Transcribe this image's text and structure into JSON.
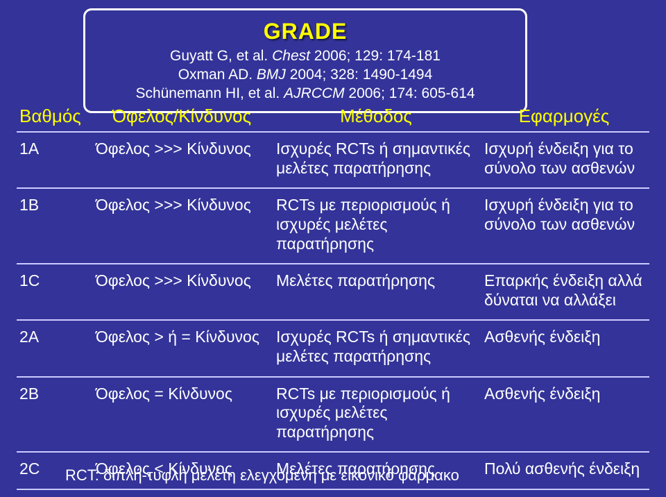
{
  "colors": {
    "background": "#333399",
    "title_color": "#ffff00",
    "header_text": "#ffff00",
    "body_text": "#ffffff",
    "border_color": "#ffffff",
    "rule_color": "#ccccff"
  },
  "header": {
    "title": "GRADE",
    "cite1_prefix": "Guyatt G, et al. ",
    "cite1_italic": "Chest",
    "cite1_suffix": " 2006; 129: 174-181",
    "cite2_prefix": "Oxman AD. ",
    "cite2_italic": "BMJ",
    "cite2_suffix": " 2004; 328: 1490-1494",
    "cite3_prefix": "Schünemann HI, et al. ",
    "cite3_italic": "AJRCCM",
    "cite3_suffix": " 2006; 174: 605-614"
  },
  "table": {
    "head": {
      "c0": "Βαθμός",
      "c1": "Όφελος/Κίνδυνος",
      "c2": "Μέθοδος",
      "c3": "Εφαρμογές"
    },
    "rows": {
      "r0": {
        "c0": "1A",
        "c1": "Όφελος >>> Κίνδυνος",
        "c2": "Ισχυρές RCTs ή σημαντικές μελέτες παρατήρησης",
        "c3": "Ισχυρή ένδειξη για το σύνολο των ασθενών"
      },
      "r1": {
        "c0": "1B",
        "c1": "Όφελος >>> Κίνδυνος",
        "c2": "RCTs με περιορισμούς ή ισχυρές μελέτες παρατήρησης",
        "c3": "Ισχυρή ένδειξη για το σύνολο των ασθενών"
      },
      "r2": {
        "c0": "1C",
        "c1": "Όφελος >>> Κίνδυνος",
        "c2": "Μελέτες παρατήρησης",
        "c3": "Επαρκής ένδειξη αλλά δύναται να αλλάξει"
      },
      "r3": {
        "c0": "2A",
        "c1": "Όφελος > ή = Κίνδυνος",
        "c2": "Ισχυρές RCTs ή σημαντικές μελέτες παρατήρησης",
        "c3": "Ασθενής ένδειξη"
      },
      "r4": {
        "c0": "2B",
        "c1": "Όφελος = Κίνδυνος",
        "c2": "RCTs με περιορισμούς ή ισχυρές μελέτες παρατήρησης",
        "c3": "Ασθενής ένδειξη"
      },
      "r5": {
        "c0": "2C",
        "c1": "Όφελος < Κίνδυνος",
        "c2": "Μελέτες παρατήρησης",
        "c3": "Πολύ ασθενής ένδειξη"
      }
    }
  },
  "footnote": "RCT: διπλή-τυφλή μελέτη ελεγχόμενη με εικονικό φάρμακο"
}
